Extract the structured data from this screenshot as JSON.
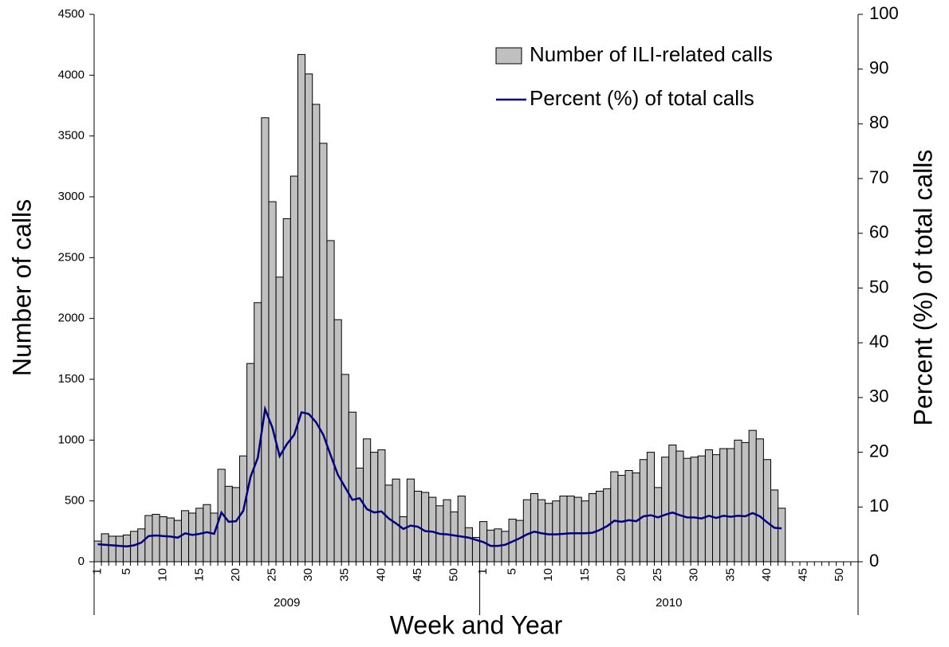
{
  "chart_data": {
    "type": "bar_line",
    "x_label": "Week and Year",
    "y_label": "Number of calls",
    "y2_label": "Percent (%) of total calls",
    "groups": [
      {
        "label": "2009",
        "categories": [
          "1",
          null,
          null,
          null,
          "5",
          null,
          null,
          null,
          null,
          "10",
          null,
          null,
          null,
          null,
          "15",
          null,
          null,
          null,
          null,
          "20",
          null,
          null,
          null,
          null,
          "25",
          null,
          null,
          null,
          null,
          "30",
          null,
          null,
          null,
          null,
          "35",
          null,
          null,
          null,
          null,
          "40",
          null,
          null,
          null,
          null,
          "45",
          null,
          null,
          null,
          null,
          "50",
          null,
          null,
          null
        ]
      },
      {
        "label": "2010",
        "categories": [
          "1",
          null,
          null,
          null,
          "5",
          null,
          null,
          null,
          null,
          "10",
          null,
          null,
          null,
          null,
          "15",
          null,
          null,
          null,
          null,
          "20",
          null,
          null,
          null,
          null,
          "25",
          null,
          null,
          null,
          null,
          "30",
          null,
          null,
          null,
          null,
          "35",
          null,
          null,
          null,
          null,
          "40",
          null,
          null,
          null,
          null,
          "45",
          null,
          null,
          null,
          null,
          "50",
          null,
          null
        ]
      }
    ],
    "series": [
      {
        "name": "Number of ILI-related calls",
        "type": "bar",
        "color": "#c0c0c0",
        "values": [
          170,
          230,
          210,
          210,
          220,
          250,
          270,
          380,
          390,
          370,
          360,
          340,
          420,
          400,
          440,
          470,
          400,
          760,
          620,
          610,
          870,
          1630,
          2130,
          3650,
          2960,
          2340,
          2820,
          3170,
          4170,
          4010,
          3760,
          3440,
          2640,
          1990,
          1540,
          1230,
          770,
          1010,
          900,
          920,
          630,
          680,
          370,
          680,
          580,
          570,
          530,
          460,
          510,
          410,
          540,
          280,
          200,
          330,
          260,
          270,
          250,
          350,
          340,
          510,
          560,
          510,
          480,
          500,
          540,
          540,
          530,
          500,
          560,
          580,
          600,
          740,
          710,
          750,
          730,
          840,
          900,
          610,
          860,
          960,
          910,
          850,
          860,
          870,
          920,
          880,
          930,
          930,
          1000,
          980,
          1080,
          1010,
          840,
          590,
          440,
          null,
          null,
          null,
          null,
          null,
          null,
          null,
          null,
          null,
          null
        ]
      },
      {
        "name": "Percent (%) of total calls",
        "type": "line",
        "color": "#000080",
        "axis": "y2",
        "values": [
          3.2,
          3.1,
          3.0,
          2.9,
          2.8,
          3.0,
          3.5,
          4.7,
          4.8,
          4.7,
          4.6,
          4.4,
          5.2,
          4.9,
          5.1,
          5.4,
          5.1,
          9.0,
          7.3,
          7.4,
          9.3,
          15.5,
          19.0,
          27.9,
          24.5,
          19.3,
          21.5,
          23.2,
          27.3,
          27.0,
          25.5,
          23.2,
          19.5,
          15.9,
          13.6,
          11.3,
          11.6,
          9.6,
          9.0,
          9.2,
          7.9,
          7.0,
          6.0,
          6.6,
          6.4,
          5.6,
          5.5,
          5.1,
          5.0,
          4.8,
          4.6,
          4.4,
          4.0,
          3.6,
          2.9,
          2.9,
          3.1,
          3.7,
          4.3,
          5.0,
          5.5,
          5.2,
          5.0,
          5.0,
          5.1,
          5.2,
          5.2,
          5.2,
          5.3,
          5.8,
          6.5,
          7.5,
          7.3,
          7.6,
          7.4,
          8.3,
          8.5,
          8.1,
          8.6,
          9.0,
          8.5,
          8.1,
          8.1,
          7.9,
          8.4,
          8.0,
          8.4,
          8.2,
          8.4,
          8.3,
          8.9,
          8.3,
          7.2,
          6.2,
          6.1,
          null,
          null,
          null,
          null,
          null,
          null,
          null,
          null,
          null,
          null
        ]
      }
    ],
    "ylim": [
      0,
      4500
    ],
    "yticks": [
      0,
      500,
      1000,
      1500,
      2000,
      2500,
      3000,
      3500,
      4000,
      4500
    ],
    "y2lim": [
      0,
      100
    ],
    "y2ticks": [
      0,
      10,
      20,
      30,
      40,
      50,
      60,
      70,
      80,
      90,
      100
    ],
    "legend": "upper-right",
    "grid": false
  }
}
